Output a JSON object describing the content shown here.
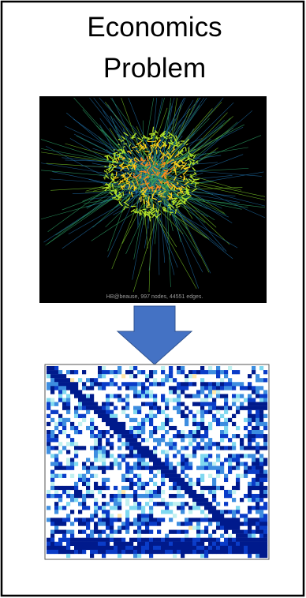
{
  "title": {
    "lines": [
      "Economics",
      "Problem"
    ]
  },
  "graph_image": {
    "caption": "HB@beause, 997 nodes, 44551 edges."
  }
}
